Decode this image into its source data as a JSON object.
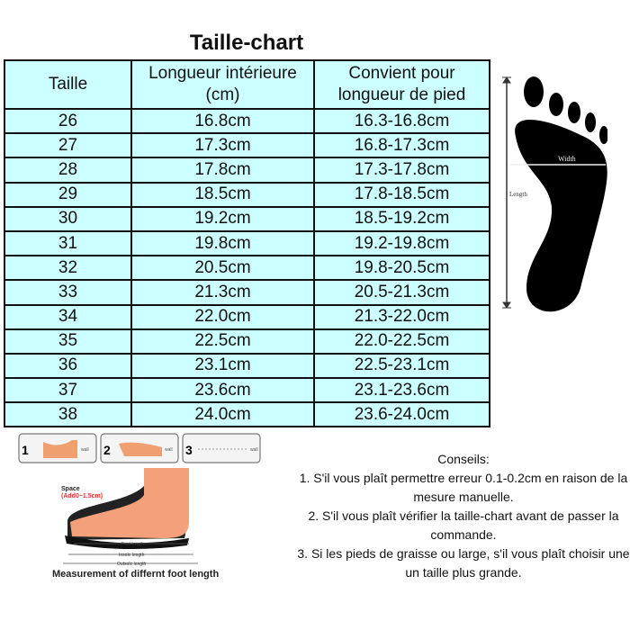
{
  "title": "Taille-chart",
  "headers": [
    "Taille",
    "Longueur intérieure (cm)",
    "Convient pour longueur de pied"
  ],
  "rows": [
    [
      "26",
      "16.8cm",
      "16.3-16.8cm"
    ],
    [
      "27",
      "17.3cm",
      "16.8-17.3cm"
    ],
    [
      "28",
      "17.8cm",
      "17.3-17.8cm"
    ],
    [
      "29",
      "18.5cm",
      "17.8-18.5cm"
    ],
    [
      "30",
      "19.2cm",
      "18.5-19.2cm"
    ],
    [
      "31",
      "19.8cm",
      "19.2-19.8cm"
    ],
    [
      "32",
      "20.5cm",
      "19.8-20.5cm"
    ],
    [
      "33",
      "21.3cm",
      "20.5-21.3cm"
    ],
    [
      "34",
      "22.0cm",
      "21.3-22.0cm"
    ],
    [
      "35",
      "22.5cm",
      "22.0-22.5cm"
    ],
    [
      "36",
      "23.1cm",
      "22.5-23.1cm"
    ],
    [
      "37",
      "23.6cm",
      "23.1-23.6cm"
    ],
    [
      "38",
      "24.0cm",
      "23.6-24.0cm"
    ]
  ],
  "foot_diagram": {
    "width_label": "Width",
    "length_label": "Length"
  },
  "steps": {
    "numbers": [
      "1",
      "2",
      "3"
    ],
    "wall_label": "wall"
  },
  "shoe_diagram": {
    "space_label": "Space",
    "space_value": "(Add0~1.5cm)",
    "foot_length": "Foot length",
    "insole_length": "Insole length",
    "outsole_length": "Outsole length",
    "caption": "Measurement of differnt foot length"
  },
  "tips": {
    "heading": "Conseils:",
    "items": [
      "1. S'il vous plaît permettre erreur 0.1-0.2cm en raison de la mesure manuelle.",
      "2. S'il vous plaît vérifier la taille-chart avant de passer la commande.",
      "3. Si les pieds de graisse ou large, s'il vous plaît choisir une un taille plus grande."
    ]
  }
}
